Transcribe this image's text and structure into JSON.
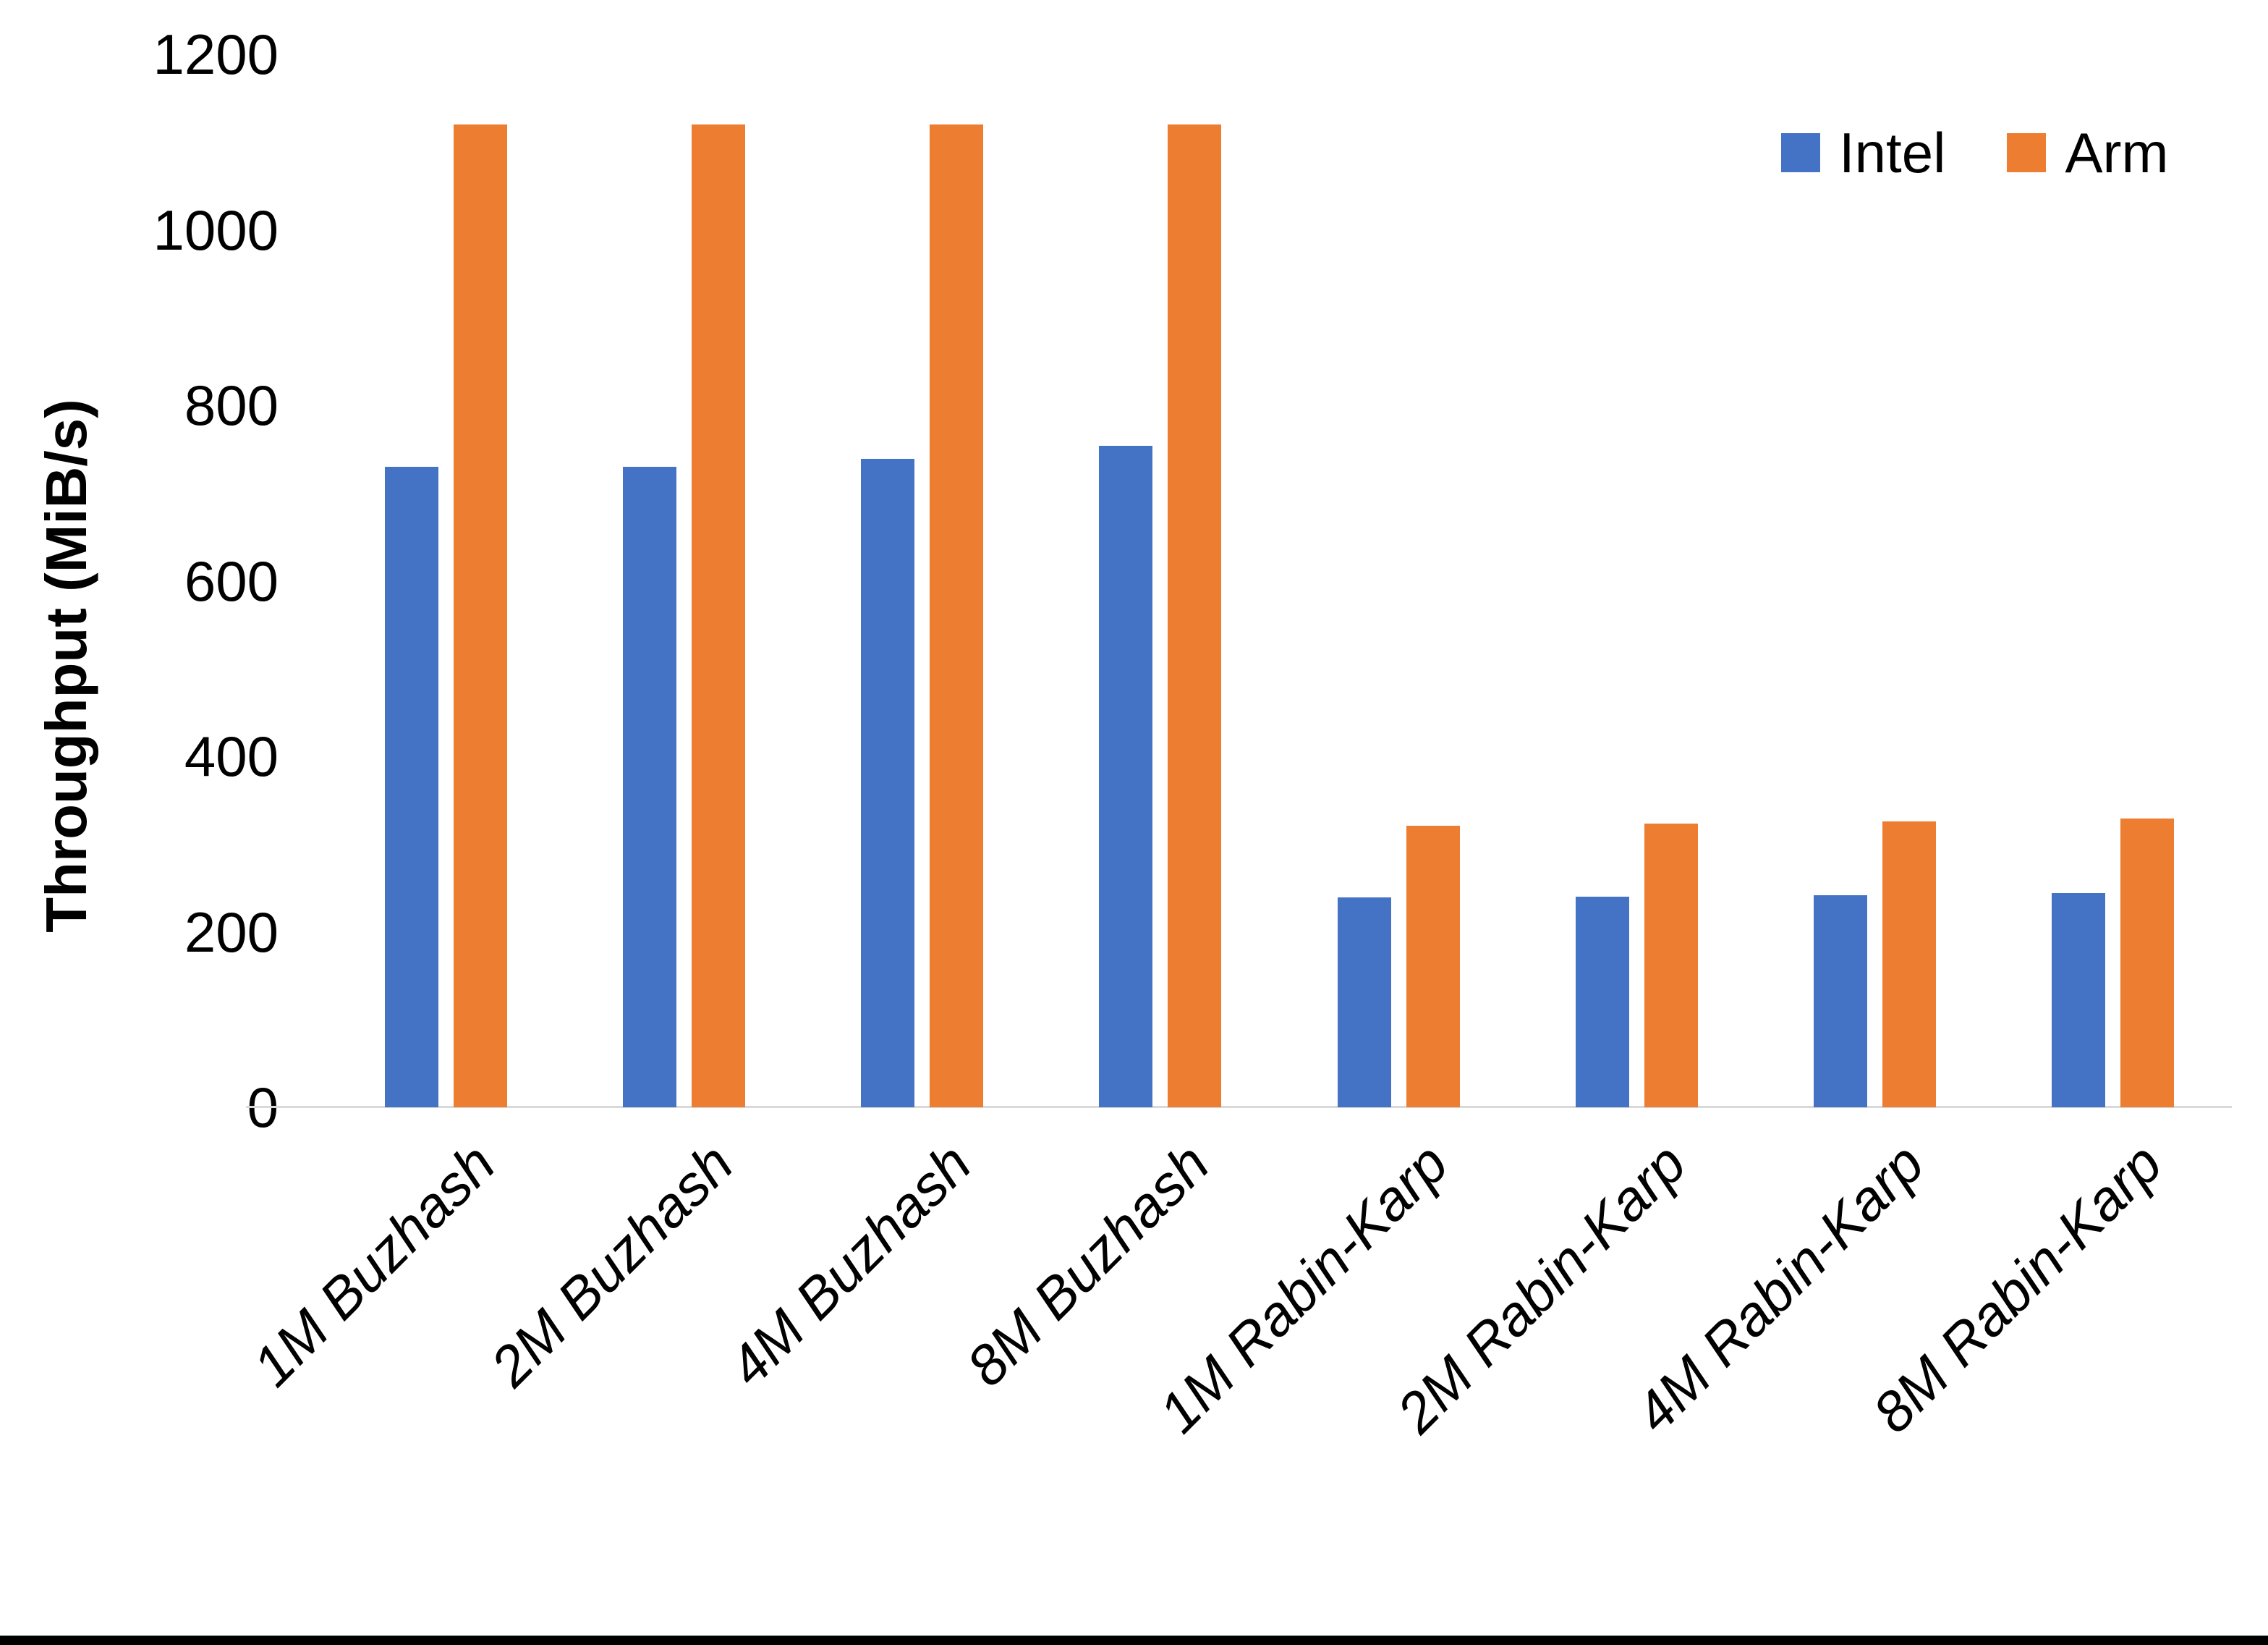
{
  "chart_data": {
    "type": "bar",
    "title": "",
    "categories": [
      "1M Buzhash",
      "2M Buzhash",
      "4M Buzhash",
      "8M Buzhash",
      "1M Rabin-Karp",
      "2M Rabin-Karp",
      "4M Rabin-Karp",
      "8M Rabin-Karp"
    ],
    "series": [
      {
        "name": "Intel",
        "color": "#4472C4",
        "values": [
          730,
          730,
          739,
          754,
          239,
          240,
          242,
          244
        ]
      },
      {
        "name": "Arm",
        "color": "#ED7D31",
        "values": [
          1120,
          1120,
          1120,
          1120,
          321,
          323,
          326,
          329
        ]
      }
    ],
    "xlabel": "",
    "ylabel": "Throughput (MiB/s)",
    "ylim": [
      0,
      1200
    ],
    "yticks": [
      0,
      200,
      400,
      600,
      800,
      1000,
      1200
    ],
    "grid": false,
    "legend_position": "top-right",
    "axis_line_color": "#d9d9d9"
  }
}
